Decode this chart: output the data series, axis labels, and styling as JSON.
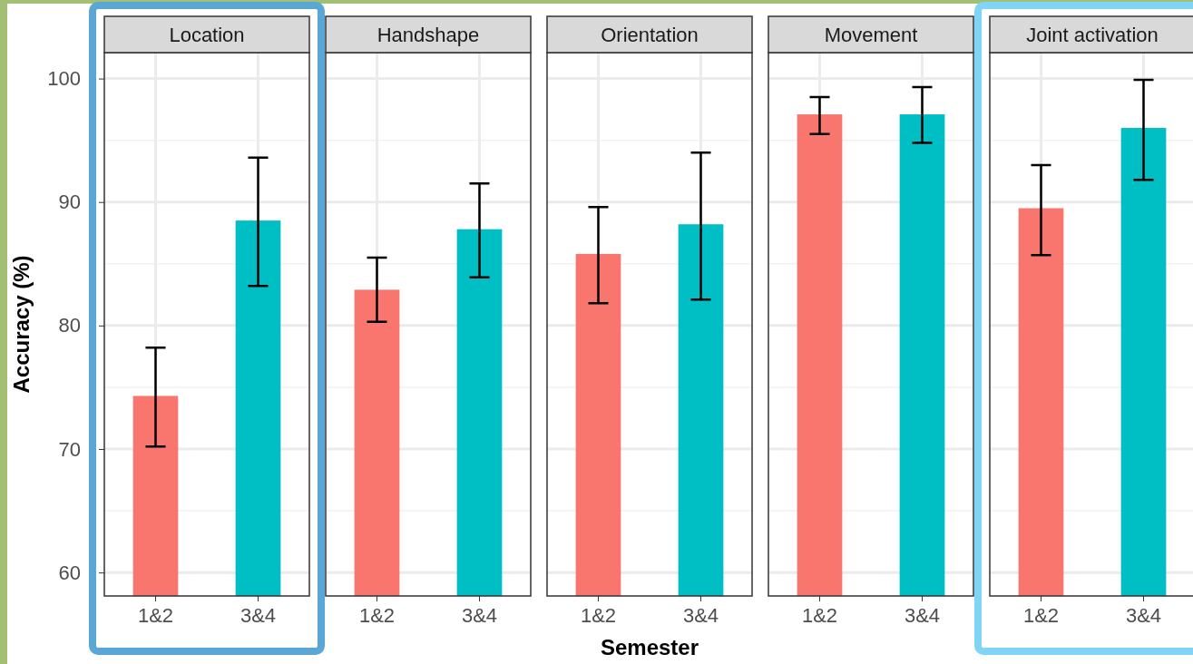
{
  "chart_data": [
    {
      "type": "bar",
      "title": "Location",
      "ylabel": "Accuracy (%)",
      "categories": [
        "1&2",
        "3&4"
      ],
      "values": [
        74.3,
        88.5
      ],
      "colors": [
        "#f8766d",
        "#00bfc4"
      ],
      "errors": [
        [
          70.2,
          78.2
        ],
        [
          83.2,
          93.6
        ]
      ],
      "ylim": [
        58.1,
        102.1
      ],
      "yticks": [
        60,
        70,
        80,
        90,
        100
      ],
      "grid": true
    },
    {
      "type": "bar",
      "title": "Handshape",
      "categories": [
        "1&2",
        "3&4"
      ],
      "values": [
        82.9,
        87.8
      ],
      "colors": [
        "#f8766d",
        "#00bfc4"
      ],
      "errors": [
        [
          80.3,
          85.5
        ],
        [
          83.9,
          91.5
        ]
      ],
      "ylim": [
        58.1,
        102.1
      ],
      "yticks": [
        60,
        70,
        80,
        90,
        100
      ],
      "grid": true,
      "tick_labels": "x"
    },
    {
      "type": "bar",
      "title": "Orientation",
      "xlabel": "Semester",
      "categories": [
        "1&2",
        "3&4"
      ],
      "values": [
        85.8,
        88.2
      ],
      "colors": [
        "#f8766d",
        "#00bfc4"
      ],
      "errors": [
        [
          81.8,
          89.6
        ],
        [
          82.1,
          94.0
        ]
      ],
      "ylim": [
        58.1,
        102.1
      ],
      "yticks": [
        60,
        70,
        80,
        90,
        100
      ],
      "grid": true,
      "tick_labels": "x"
    },
    {
      "type": "bar",
      "title": "Movement",
      "categories": [
        "1&2",
        "3&4"
      ],
      "values": [
        97.1,
        97.1
      ],
      "colors": [
        "#f8766d",
        "#00bfc4"
      ],
      "errors": [
        [
          95.5,
          98.5
        ],
        [
          94.8,
          99.3
        ]
      ],
      "ylim": [
        58.1,
        102.1
      ],
      "yticks": [
        60,
        70,
        80,
        90,
        100
      ],
      "grid": true,
      "tick_labels": "x"
    },
    {
      "type": "bar",
      "title": "Joint activation",
      "categories": [
        "1&2",
        "3&4"
      ],
      "values": [
        89.5,
        96.0
      ],
      "colors": [
        "#f8766d",
        "#00bfc4"
      ],
      "errors": [
        [
          85.7,
          93.0
        ],
        [
          91.8,
          99.9
        ]
      ],
      "ylim": [
        58.1,
        102.1
      ],
      "yticks": [
        60,
        70,
        80,
        90,
        100
      ],
      "grid": true,
      "tick_labels": "x"
    }
  ]
}
